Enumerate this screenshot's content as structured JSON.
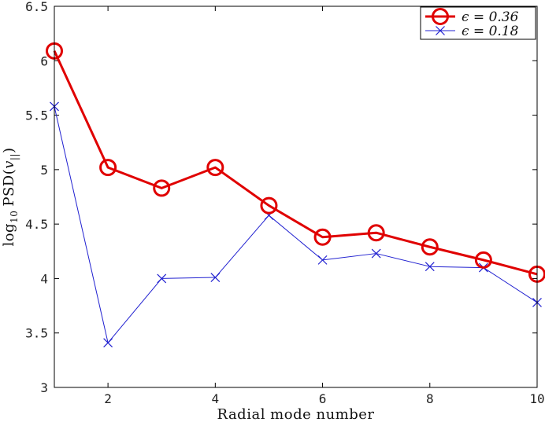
{
  "chart_data": {
    "type": "line",
    "xlabel": "Radial mode number",
    "ylabel": "log10 PSD(v||)",
    "ylabel_parts": {
      "log": "log",
      "sub": "10",
      "psd": "PSD(",
      "v": "v",
      "vsub": "||",
      "close": ")"
    },
    "xlim": [
      1,
      10
    ],
    "ylim": [
      3,
      6.5
    ],
    "x_ticks": [
      2,
      4,
      6,
      8,
      10
    ],
    "x_tick_labels": [
      "2",
      "4",
      "6",
      "8",
      "10"
    ],
    "y_ticks": [
      3,
      3.5,
      4,
      4.5,
      5,
      5.5,
      6,
      6.5
    ],
    "y_tick_labels": [
      "3",
      "3.5",
      "4",
      "4.5",
      "5",
      "5.5",
      "6",
      "6.5"
    ],
    "grid": false,
    "legend_position": "top-right",
    "series": [
      {
        "name": "ϵ = 0.36",
        "color": "#e00000",
        "marker": "circle",
        "x": [
          1,
          2,
          3,
          4,
          5,
          6,
          7,
          8,
          9,
          10
        ],
        "values": [
          6.09,
          5.02,
          4.83,
          5.02,
          4.67,
          4.38,
          4.42,
          4.29,
          4.17,
          4.04
        ]
      },
      {
        "name": "ϵ = 0.18",
        "color": "#2020d0",
        "marker": "x",
        "x": [
          1,
          2,
          3,
          4,
          5,
          6,
          7,
          8,
          9,
          10
        ],
        "values": [
          5.58,
          3.41,
          4.0,
          4.01,
          4.58,
          4.17,
          4.23,
          4.11,
          4.1,
          3.78
        ]
      }
    ]
  }
}
